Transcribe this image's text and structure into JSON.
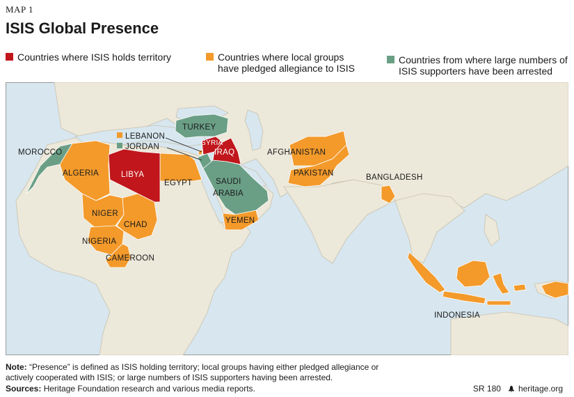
{
  "header": {
    "kicker": "MAP 1",
    "title": "ISIS Global Presence"
  },
  "colors": {
    "territory": "#c0161c",
    "allegiance": "#f39a2b",
    "arrested": "#6a9f86",
    "land": "#ece8da",
    "ocean": "#d7e6ef"
  },
  "legend": [
    {
      "key": "territory",
      "label": "Countries where ISIS holds territory"
    },
    {
      "key": "allegiance",
      "label": "Countries where local groups\nhave pledged allegiance to ISIS"
    },
    {
      "key": "arrested",
      "label": "Countries from where large numbers of\nISIS supporters have been arrested"
    }
  ],
  "map_labels": {
    "morocco": "MOROCCO",
    "algeria": "ALGERIA",
    "libya": "LIBYA",
    "egypt": "EGYPT",
    "lebanon": "LEBANON",
    "jordan": "JORDAN",
    "turkey": "TURKEY",
    "syria": "SYRIA",
    "iraq": "IRAQ",
    "saudi_1": "SAUDI",
    "saudi_2": "ARABIA",
    "yemen": "YEMEN",
    "afghanistan": "AFGHANISTAN",
    "pakistan": "PAKISTAN",
    "bangladesh": "BANGLADESH",
    "niger": "NIGER",
    "chad": "CHAD",
    "nigeria": "NIGERIA",
    "cameroon": "CAMEROON",
    "indonesia": "INDONESIA"
  },
  "footer": {
    "note_label": "Note:",
    "note_text": " “Presence” is defined as ISIS holding territory; local groups having either pledged allegiance or actively cooperated with ISIS; or large numbers of ISIS supporters having been arrested.",
    "sources_label": "Sources:",
    "sources_text": " Heritage Foundation research and various media reports.",
    "report_id": "SR 180",
    "site": "heritage.org"
  }
}
